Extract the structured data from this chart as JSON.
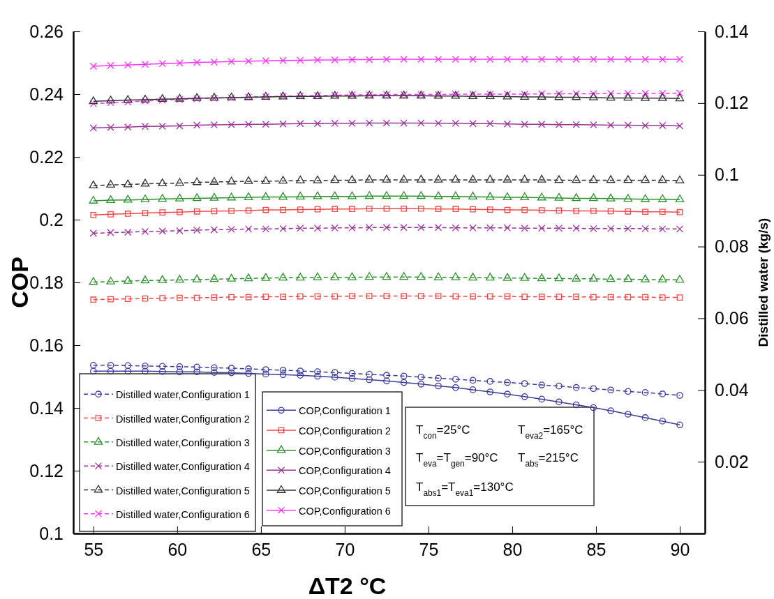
{
  "chart_data": {
    "type": "line",
    "xlabel": "ΔT2 °C",
    "ylabel": "COP",
    "y2label": "Distilled water  (kg/s)",
    "x": [
      55,
      56.03,
      57.06,
      58.09,
      59.12,
      60.15,
      61.18,
      62.21,
      63.24,
      64.26,
      65.29,
      66.32,
      67.35,
      68.38,
      69.41,
      70.44,
      71.47,
      72.5,
      73.53,
      74.56,
      75.59,
      76.62,
      77.65,
      78.68,
      79.71,
      80.74,
      81.76,
      82.79,
      83.82,
      84.85,
      85.88,
      86.91,
      87.94,
      88.97,
      90
    ],
    "xlim": [
      53.8,
      91.5
    ],
    "xticks": [
      55,
      60,
      65,
      70,
      75,
      80,
      85,
      90
    ],
    "ylim": [
      0.1,
      0.26
    ],
    "yticks": [
      0.1,
      0.12,
      0.14,
      0.16,
      0.18,
      0.2,
      0.22,
      0.24,
      0.26
    ],
    "y2lim": [
      0,
      0.14
    ],
    "y2ticks": [
      0.02,
      0.04,
      0.06,
      0.08,
      0.1,
      0.12,
      0.14
    ],
    "grid": false,
    "legend": "bottom left",
    "series": [
      {
        "name": "Distilled water,Configuration 1",
        "color": "#3b3b9b",
        "axis": "y2",
        "line_style": "dashed",
        "marker": "circle",
        "values": [
          0.0469,
          0.0469,
          0.0468,
          0.0467,
          0.0466,
          0.0465,
          0.0464,
          0.0462,
          0.0461,
          0.0459,
          0.0457,
          0.0455,
          0.0453,
          0.0451,
          0.0449,
          0.0446,
          0.0444,
          0.0441,
          0.0439,
          0.0436,
          0.0433,
          0.043,
          0.0427,
          0.0424,
          0.0421,
          0.0418,
          0.0414,
          0.0411,
          0.0407,
          0.0404,
          0.04,
          0.0396,
          0.0393,
          0.0389,
          0.0385
        ]
      },
      {
        "name": "Distilled water,Configuration 2",
        "color": "#f04848",
        "axis": "y2",
        "line_style": "dashed",
        "marker": "square",
        "values": [
          0.0652,
          0.0653,
          0.0654,
          0.0655,
          0.0656,
          0.0657,
          0.0657,
          0.0658,
          0.0659,
          0.0659,
          0.066,
          0.066,
          0.0661,
          0.0661,
          0.0661,
          0.0662,
          0.0662,
          0.0662,
          0.0662,
          0.0662,
          0.0662,
          0.0661,
          0.0661,
          0.0661,
          0.0661,
          0.066,
          0.066,
          0.066,
          0.066,
          0.0659,
          0.0659,
          0.0659,
          0.0659,
          0.0658,
          0.0658
        ]
      },
      {
        "name": "Distilled water,Configuration 3",
        "color": "#2f912f",
        "axis": "y2",
        "line_style": "dashed",
        "marker": "triangle",
        "values": [
          0.0701,
          0.0702,
          0.0704,
          0.0705,
          0.0706,
          0.0707,
          0.0708,
          0.0709,
          0.071,
          0.0711,
          0.0712,
          0.0713,
          0.0713,
          0.0714,
          0.0714,
          0.0714,
          0.0715,
          0.0715,
          0.0715,
          0.0715,
          0.0714,
          0.0714,
          0.0713,
          0.0713,
          0.0712,
          0.0712,
          0.0711,
          0.0711,
          0.071,
          0.071,
          0.0709,
          0.0709,
          0.0708,
          0.0708,
          0.0707
        ]
      },
      {
        "name": "Distilled water,Configuration 4",
        "color": "#993399",
        "axis": "y2",
        "line_style": "dashed",
        "marker": "cross",
        "values": [
          0.0837,
          0.0839,
          0.084,
          0.0842,
          0.0843,
          0.0844,
          0.0846,
          0.0847,
          0.0848,
          0.0849,
          0.0849,
          0.085,
          0.0851,
          0.0851,
          0.0852,
          0.0852,
          0.0853,
          0.0853,
          0.0853,
          0.0853,
          0.0853,
          0.0852,
          0.0852,
          0.0852,
          0.0852,
          0.0851,
          0.0851,
          0.0851,
          0.0851,
          0.085,
          0.085,
          0.085,
          0.085,
          0.0849,
          0.0849
        ]
      },
      {
        "name": "Distilled water,Configuration 5",
        "color": "#333333",
        "axis": "y2",
        "line_style": "dashed",
        "marker": "triangle",
        "values": [
          0.097,
          0.0972,
          0.0973,
          0.0975,
          0.0976,
          0.0977,
          0.0979,
          0.098,
          0.0981,
          0.0982,
          0.0982,
          0.0983,
          0.0984,
          0.0984,
          0.0985,
          0.0985,
          0.0986,
          0.0986,
          0.0986,
          0.0986,
          0.0986,
          0.0986,
          0.0986,
          0.0986,
          0.0986,
          0.0986,
          0.0986,
          0.0985,
          0.0985,
          0.0985,
          0.0985,
          0.0985,
          0.0985,
          0.0985,
          0.0984
        ]
      },
      {
        "name": "Distilled water,Configuration 6",
        "color": "#ff33ff",
        "axis": "y2",
        "line_style": "dashed",
        "marker": "cross",
        "values": [
          0.1198,
          0.1201,
          0.1203,
          0.1206,
          0.1208,
          0.121,
          0.1212,
          0.1214,
          0.1215,
          0.1217,
          0.1218,
          0.1219,
          0.122,
          0.1221,
          0.1222,
          0.1223,
          0.1223,
          0.1224,
          0.1224,
          0.1224,
          0.1224,
          0.1225,
          0.1225,
          0.1225,
          0.1225,
          0.1225,
          0.1226,
          0.1226,
          0.1226,
          0.1226,
          0.1227,
          0.1227,
          0.1227,
          0.1227,
          0.1228
        ]
      },
      {
        "name": "COP,Configuration 1",
        "color": "#3b3b9b",
        "line_style": "solid",
        "marker": "circle",
        "values": [
          0.1517,
          0.1517,
          0.1517,
          0.1517,
          0.1516,
          0.1515,
          0.1515,
          0.1513,
          0.1512,
          0.151,
          0.1508,
          0.1506,
          0.1504,
          0.1501,
          0.1498,
          0.1494,
          0.149,
          0.1486,
          0.1481,
          0.1476,
          0.147,
          0.1465,
          0.1458,
          0.1451,
          0.1444,
          0.1436,
          0.1428,
          0.1419,
          0.141,
          0.1401,
          0.1391,
          0.138,
          0.1369,
          0.1358,
          0.1346
        ]
      },
      {
        "name": "COP,Configuration 2",
        "color": "#f04848",
        "line_style": "solid",
        "marker": "square",
        "values": [
          0.2015,
          0.2017,
          0.2019,
          0.2021,
          0.2023,
          0.2024,
          0.2026,
          0.2027,
          0.2028,
          0.2029,
          0.2031,
          0.2031,
          0.2032,
          0.2033,
          0.2034,
          0.2034,
          0.2035,
          0.2035,
          0.2035,
          0.2035,
          0.2034,
          0.2034,
          0.2033,
          0.2032,
          0.2031,
          0.2031,
          0.203,
          0.2029,
          0.2028,
          0.2028,
          0.2027,
          0.2026,
          0.2025,
          0.2025,
          0.2024
        ]
      },
      {
        "name": "COP,Configuration 3",
        "color": "#2f912f",
        "line_style": "solid",
        "marker": "triangle",
        "values": [
          0.206,
          0.2062,
          0.2063,
          0.2064,
          0.2066,
          0.2067,
          0.2068,
          0.2069,
          0.207,
          0.2071,
          0.2072,
          0.2072,
          0.2073,
          0.2074,
          0.2074,
          0.2074,
          0.2075,
          0.2075,
          0.2075,
          0.2075,
          0.2074,
          0.2074,
          0.2073,
          0.2072,
          0.2071,
          0.2071,
          0.207,
          0.2069,
          0.2068,
          0.2068,
          0.2067,
          0.2066,
          0.2065,
          0.2065,
          0.2064
        ]
      },
      {
        "name": "COP,Configuration 4",
        "color": "#993399",
        "line_style": "solid",
        "marker": "cross",
        "values": [
          0.2292,
          0.2294,
          0.2295,
          0.2297,
          0.2298,
          0.2299,
          0.2301,
          0.2302,
          0.2303,
          0.2304,
          0.2304,
          0.2305,
          0.2306,
          0.2306,
          0.2307,
          0.2307,
          0.2308,
          0.2308,
          0.2308,
          0.2308,
          0.2307,
          0.2307,
          0.2306,
          0.2306,
          0.2305,
          0.2304,
          0.2304,
          0.2303,
          0.2303,
          0.2302,
          0.2301,
          0.2301,
          0.23,
          0.23,
          0.2299
        ]
      },
      {
        "name": "COP,Configuration 5",
        "color": "#333333",
        "line_style": "solid",
        "marker": "triangle",
        "values": [
          0.2377,
          0.2379,
          0.2381,
          0.2382,
          0.2384,
          0.2385,
          0.2387,
          0.2388,
          0.2389,
          0.239,
          0.2391,
          0.2392,
          0.2393,
          0.2393,
          0.2394,
          0.2394,
          0.2395,
          0.2395,
          0.2395,
          0.2395,
          0.2394,
          0.2394,
          0.2393,
          0.2393,
          0.2392,
          0.2391,
          0.2391,
          0.239,
          0.239,
          0.2389,
          0.2388,
          0.2388,
          0.2387,
          0.2387,
          0.2386
        ]
      },
      {
        "name": "COP,Configuration 6",
        "color": "#ff33ff",
        "line_style": "solid",
        "marker": "cross",
        "values": [
          0.2489,
          0.2491,
          0.2493,
          0.2495,
          0.2497,
          0.2499,
          0.2501,
          0.2502,
          0.2504,
          0.2505,
          0.2506,
          0.2507,
          0.2508,
          0.2509,
          0.2509,
          0.251,
          0.251,
          0.2511,
          0.2511,
          0.2511,
          0.2511,
          0.2511,
          0.2511,
          0.2511,
          0.2511,
          0.2511,
          0.2511,
          0.2511,
          0.2511,
          0.2511,
          0.2511,
          0.2511,
          0.2511,
          0.2511,
          0.2511
        ]
      }
    ],
    "annotations": [
      "T$_{con}$=25°C",
      "T$_{eva2}$=165°C",
      "T$_{eva}$=T$_{gen}$=90°C",
      "T$_{abs}$=215°C",
      "T$_{abs1}$=T$_{eva1}$=130°C"
    ]
  }
}
